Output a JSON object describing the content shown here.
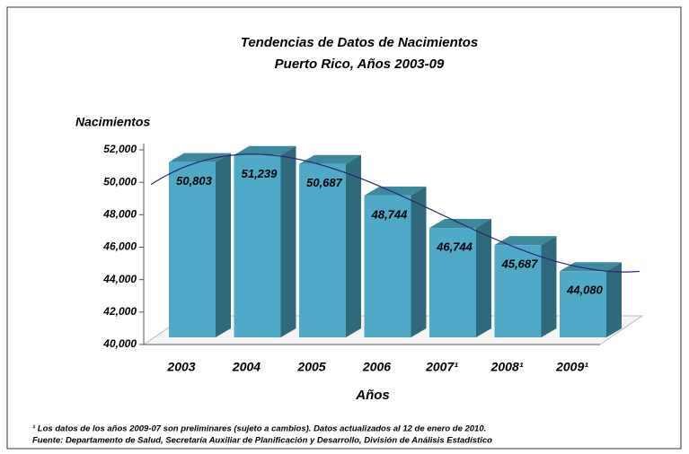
{
  "chart_data": {
    "type": "bar3d",
    "title": "Tendencias de Datos de Nacimientos",
    "subtitle": "Puerto Rico, Años 2003-09",
    "y_label": "Nacimientos",
    "x_label": "Años",
    "categories": [
      "2003",
      "2004",
      "2005",
      "2006",
      "2007¹",
      "2008¹",
      "2009¹"
    ],
    "values": [
      50803,
      51239,
      50687,
      48744,
      46744,
      45687,
      44080
    ],
    "value_labels": [
      "50,803",
      "51,239",
      "50,687",
      "48,744",
      "46,744",
      "45,687",
      "44,080"
    ],
    "color": "#4eaac6",
    "ylim": [
      40000,
      52000
    ],
    "yticks": [
      {
        "value": 40000,
        "label": "40,000"
      },
      {
        "value": 42000,
        "label": "42,000"
      },
      {
        "value": 44000,
        "label": "44,000"
      },
      {
        "value": 46000,
        "label": "46,000"
      },
      {
        "value": 48000,
        "label": "48,000"
      },
      {
        "value": 50000,
        "label": "50,000"
      },
      {
        "value": 52000,
        "label": "52,000"
      }
    ],
    "trendline": "polynomial",
    "trendline_color": "#27276e",
    "notes": [
      "¹ Los datos de los años 2009-07 son preliminares (sujeto a cambios). Datos actualizados al 12 de enero de 2010.",
      "Fuente: Departamento de Salud, Secretaría Auxiliar de Planificación y Desarrollo, División de Análisis Estadístico"
    ]
  }
}
